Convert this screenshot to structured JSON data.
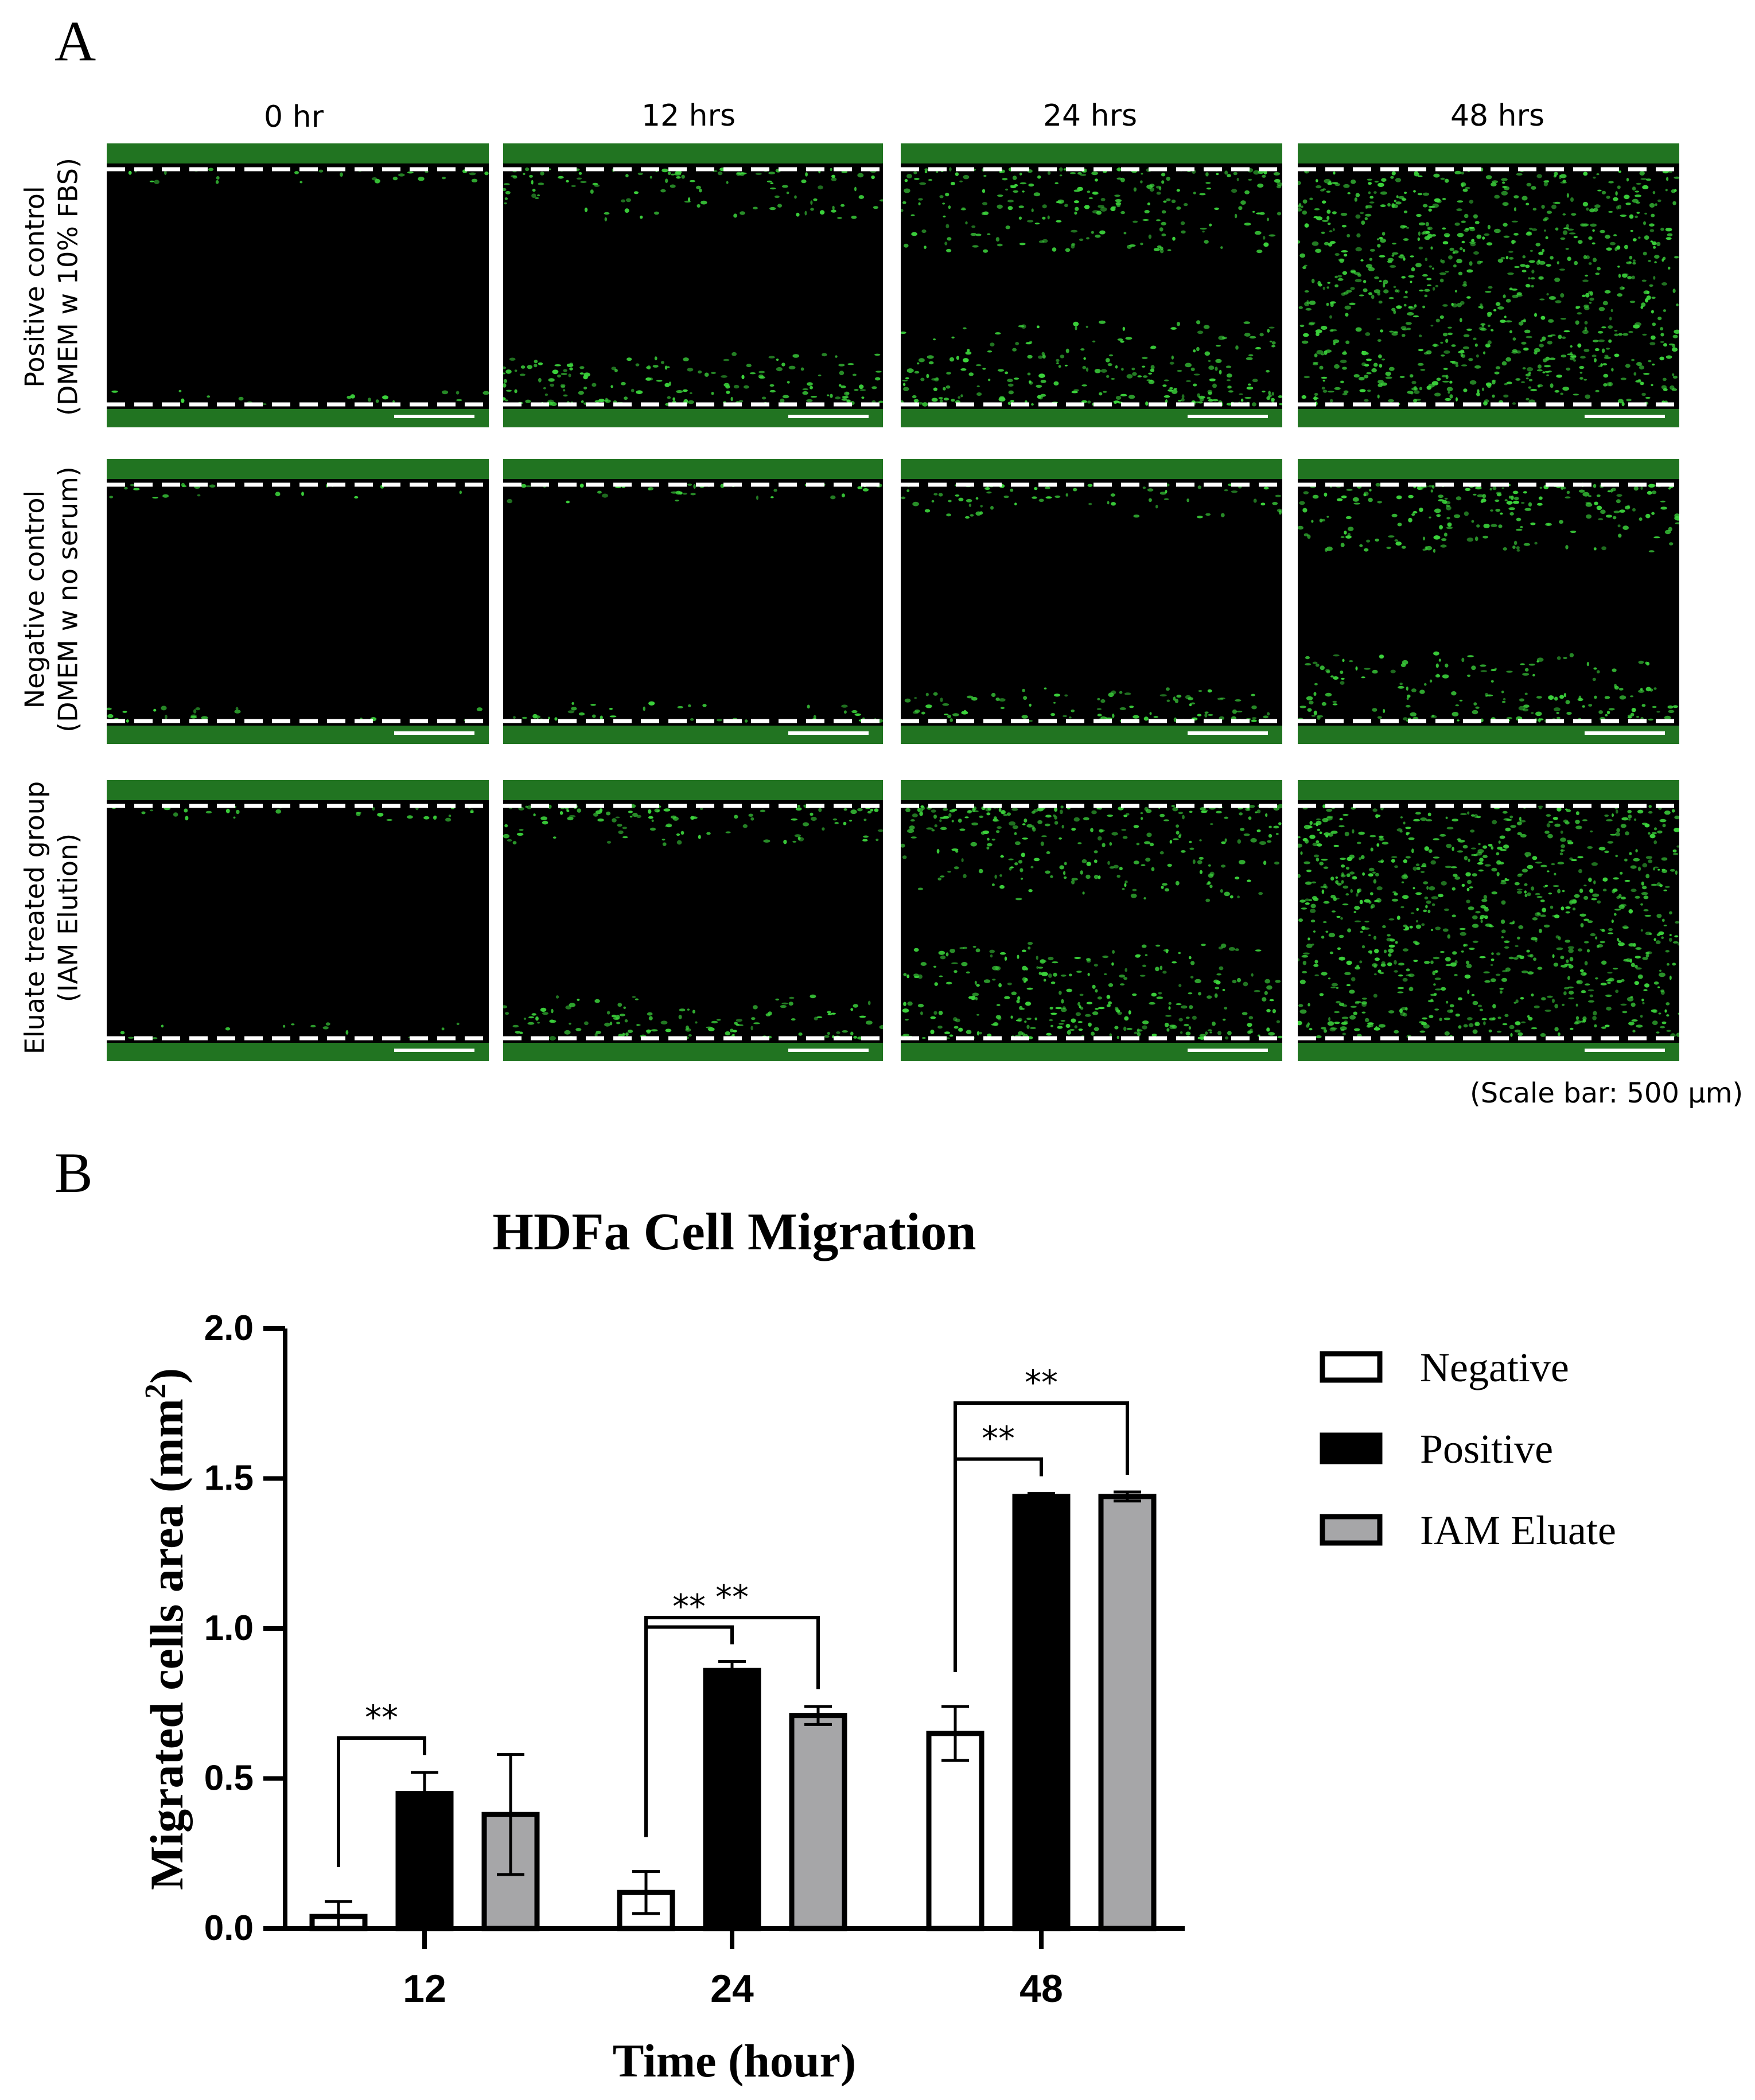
{
  "panel_a": {
    "label": "A",
    "columns": [
      "0 hr",
      "12 hrs",
      "24 hrs",
      "48 hrs"
    ],
    "rows": [
      {
        "line1": "Positive control",
        "line2": "(DMEM w 10% FBS)",
        "coverage": [
          0.02,
          0.28,
          0.5,
          0.95
        ]
      },
      {
        "line1": "Negative control",
        "line2": "(DMEM w no serum)",
        "coverage": [
          0.01,
          0.05,
          0.15,
          0.4
        ]
      },
      {
        "line1": "Eluate treated group",
        "line2": "(IAM Elution)",
        "coverage": [
          0.02,
          0.22,
          0.6,
          0.95
        ]
      }
    ],
    "scale_note": "(Scale bar: 500 μm)",
    "colors": {
      "cells": "#3cd43c",
      "background": "#000000",
      "scratch_lines": "#ffffff"
    }
  },
  "panel_b": {
    "label": "B"
  },
  "chart_data": {
    "type": "bar",
    "title": "HDFa Cell Migration",
    "xlabel": "Time (hour)",
    "ylabel_main": "Migrated cells area (mm",
    "ylabel_sup": "2",
    "ylabel_end": ")",
    "categories": [
      "12",
      "24",
      "48"
    ],
    "ylim": [
      0,
      2.0
    ],
    "yticks": [
      "0.0",
      "0.5",
      "1.0",
      "1.5",
      "2.0"
    ],
    "series": [
      {
        "name": "Negative",
        "fill": "#ffffff",
        "values": [
          0.04,
          0.12,
          0.65
        ],
        "errors": [
          0.05,
          0.07,
          0.09
        ]
      },
      {
        "name": "Positive",
        "fill": "#000000",
        "values": [
          0.45,
          0.86,
          1.44
        ],
        "errors": [
          0.07,
          0.03,
          0.01
        ]
      },
      {
        "name": "IAM Eluate",
        "fill": "#a6a6a8",
        "values": [
          0.38,
          0.71,
          1.44
        ],
        "errors": [
          0.2,
          0.03,
          0.015
        ]
      }
    ],
    "significance": [
      {
        "category": "12",
        "from": "Negative",
        "to": "Positive",
        "label": "**"
      },
      {
        "category": "24",
        "from": "Negative",
        "to": "Positive",
        "label": "**"
      },
      {
        "category": "24",
        "from": "Negative",
        "to": "IAM Eluate",
        "label": "**"
      },
      {
        "category": "48",
        "from": "Negative",
        "to": "Positive",
        "label": "**"
      },
      {
        "category": "48",
        "from": "Negative",
        "to": "IAM Eluate",
        "label": "**"
      }
    ],
    "legend_position": "top-right",
    "grid": false
  }
}
